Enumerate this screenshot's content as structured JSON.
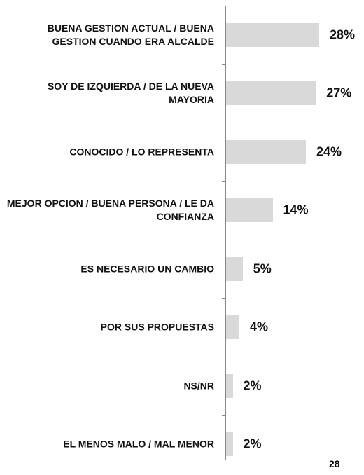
{
  "chart_data": {
    "type": "barh",
    "categories": [
      "BUENA GESTION ACTUAL / BUENA GESTION CUANDO ERA ALCALDE",
      "SOY DE IZQUIERDA / DE LA NUEVA MAYORIA",
      "CONOCIDO / LO REPRESENTA",
      "MEJOR OPCION / BUENA PERSONA / LE DA CONFIANZA",
      "ES NECESARIO UN CAMBIO",
      "POR SUS PROPUESTAS",
      "NS/NR",
      "EL MENOS MALO / MAL MENOR"
    ],
    "values": [
      28,
      27,
      24,
      14,
      5,
      4,
      2,
      2
    ],
    "value_labels": [
      "28%",
      "27%",
      "24%",
      "14%",
      "5%",
      "4%",
      "2%",
      "2%"
    ],
    "color": "#d9d9d9"
  },
  "page_number": "28"
}
